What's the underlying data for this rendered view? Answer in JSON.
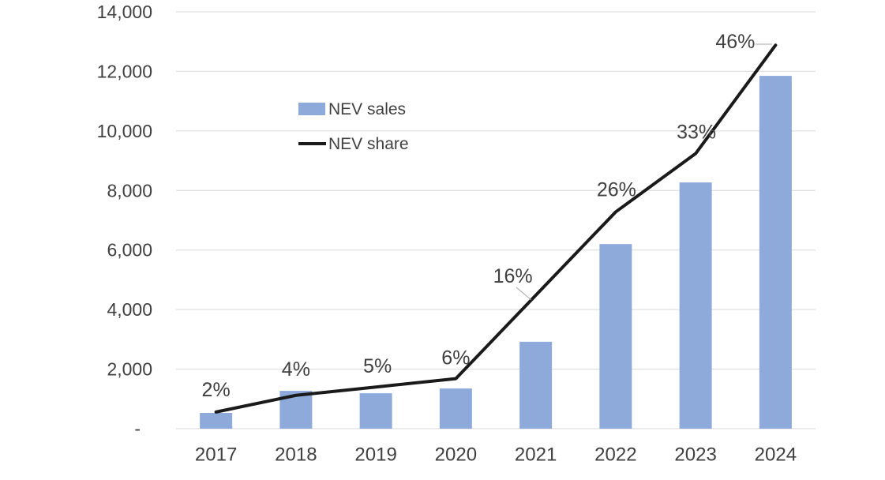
{
  "chart_data": {
    "type": "combo-bar-line",
    "title": "",
    "categories": [
      "2017",
      "2018",
      "2019",
      "2020",
      "2021",
      "2022",
      "2023",
      "2024"
    ],
    "series": [
      {
        "name": "NEV sales",
        "type": "bar",
        "color": "#8EAADB",
        "values": [
          530,
          1270,
          1190,
          1350,
          2920,
          6200,
          8270,
          11850
        ]
      },
      {
        "name": "NEV share",
        "type": "line",
        "color": "#1A1A1A",
        "values_pct": [
          2,
          4,
          5,
          6,
          16,
          26,
          33,
          46
        ],
        "point_labels": [
          "2%",
          "4%",
          "5%",
          "6%",
          "16%",
          "26%",
          "33%",
          "46%"
        ]
      }
    ],
    "value_axis": {
      "min": 0,
      "max": 14000,
      "tick_interval": 2000,
      "tick_labels": [
        "-",
        "2,000",
        "4,000",
        "6,000",
        "8,000",
        "10,000",
        "12,000",
        "14,000"
      ]
    },
    "secondary_axis": {
      "min": 0,
      "max": 50,
      "unit": "%",
      "visible": false
    },
    "grid": "horizontal",
    "legend": {
      "position": "inside-upper-left",
      "items": [
        {
          "label": "NEV sales",
          "swatch": "bar"
        },
        {
          "label": "NEV share",
          "swatch": "line"
        }
      ]
    },
    "colors": {
      "background": "#FFFFFF",
      "axis_text": "#404040",
      "gridline": "#D9D9D9",
      "leader_line": "#A6A6A6"
    }
  }
}
